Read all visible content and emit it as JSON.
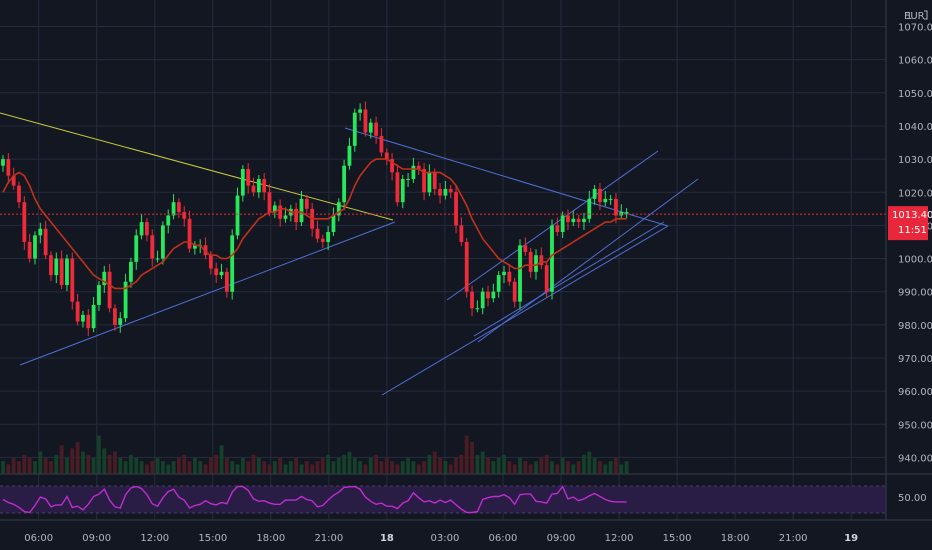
{
  "header": {
    "currency": "EUR",
    "scale_mode": "1"
  },
  "colors": {
    "background": "#131722",
    "grid": "#262b3e",
    "up": "#26e85a",
    "down": "#ef2b3a",
    "ma": "#c23218",
    "trendline_blue": "#4f6fd6",
    "trendline_yellow": "#c9c93a",
    "rsi_line": "#c02ccf",
    "rsi_band": "#2a1d45",
    "last_price": "#e8283a"
  },
  "chart_data": [
    {
      "type": "candlestick",
      "y_ticks": [
        "1070.00",
        "1060.00",
        "1050.00",
        "1040.00",
        "1030.00",
        "1020.00",
        "1010.00",
        "1000.00",
        "990.00",
        "980.00",
        "970.00",
        "960.00",
        "950.00",
        "940.00"
      ],
      "y_tick_values": [
        1070,
        1060,
        1050,
        1040,
        1030,
        1020,
        1010,
        1000,
        990,
        980,
        970,
        960,
        950,
        940
      ],
      "ylim": [
        935,
        1078
      ],
      "x_ticks": [
        "06:00",
        "09:00",
        "12:00",
        "15:00",
        "18:00",
        "21:00",
        "18",
        "03:00",
        "06:00",
        "09:00",
        "12:00",
        "15:00",
        "18:00",
        "21:00",
        "19"
      ],
      "x_tick_hours": [
        6,
        9,
        12,
        15,
        18,
        21,
        24,
        27,
        30,
        33,
        36,
        39,
        42,
        45,
        48
      ],
      "xlim_hours": [
        4.0,
        49.8
      ],
      "last_price": {
        "value": 1013.4,
        "label": "1013.40",
        "countdown": "11:51"
      },
      "candles_close": [
        1030,
        1025,
        1022,
        1017,
        1005,
        1000,
        1007,
        1009,
        1001,
        995,
        1000,
        992,
        1000,
        987,
        981,
        983,
        979,
        986,
        992,
        996,
        985,
        980,
        982,
        993,
        999,
        1007,
        1011,
        1007,
        1000,
        1000,
        1010,
        1013,
        1017,
        1014,
        1012,
        1003,
        1004,
        1004,
        1001,
        997,
        995,
        996,
        990,
        1007,
        1019,
        1027,
        1022,
        1020,
        1024,
        1020,
        1014,
        1016,
        1012,
        1013,
        1015,
        1011,
        1018,
        1015,
        1009,
        1006,
        1005,
        1008,
        1013,
        1017,
        1028,
        1034,
        1044,
        1045,
        1038,
        1041,
        1037,
        1032,
        1030,
        1026,
        1017,
        1024,
        1024,
        1028,
        1027,
        1020,
        1026,
        1021,
        1019,
        1021,
        1020,
        1010,
        1005,
        990,
        985,
        985,
        990,
        988,
        990,
        995,
        996,
        993,
        987,
        1004,
        1002,
        996,
        1001,
        998,
        990,
        1010,
        1008,
        1013,
        1011,
        1012,
        1011,
        1012,
        1018,
        1021,
        1017,
        1018,
        1018,
        1013,
        1014,
        1014
      ],
      "ma_values": [
        1020,
        1023,
        1025,
        1026,
        1025,
        1022,
        1018,
        1015,
        1013,
        1011,
        1009,
        1007,
        1005,
        1003,
        1001,
        999,
        997,
        995,
        994,
        993,
        992,
        991,
        991,
        991,
        992,
        993,
        995,
        996,
        997,
        998,
        999,
        1001,
        1003,
        1004,
        1005,
        1005,
        1004,
        1004,
        1002,
        1001,
        1001,
        1000,
        1000,
        1001,
        1003,
        1006,
        1008,
        1010,
        1012,
        1013,
        1014,
        1014,
        1015,
        1015,
        1014,
        1014,
        1014,
        1013,
        1012,
        1012,
        1012,
        1012,
        1013,
        1014,
        1015,
        1018,
        1022,
        1025,
        1027,
        1029,
        1030,
        1030,
        1030,
        1029,
        1028,
        1027,
        1027,
        1027,
        1027,
        1026,
        1026,
        1026,
        1026,
        1025,
        1024,
        1022,
        1019,
        1016,
        1012,
        1009,
        1006,
        1004,
        1002,
        1000,
        999,
        998,
        997,
        997,
        998,
        998,
        998,
        999,
        999,
        1001,
        1002,
        1003,
        1004,
        1005,
        1006,
        1007,
        1008,
        1009,
        1010,
        1011,
        1011,
        1012,
        1012,
        1012
      ],
      "volume": [
        4,
        3,
        5,
        4,
        6,
        5,
        4,
        7,
        5,
        4,
        6,
        9,
        5,
        8,
        10,
        7,
        6,
        5,
        12,
        8,
        6,
        7,
        5,
        4,
        6,
        5,
        4,
        3,
        4,
        5,
        4,
        3,
        4,
        5,
        6,
        4,
        5,
        4,
        3,
        5,
        6,
        9,
        5,
        4,
        3,
        5,
        4,
        6,
        5,
        4,
        3,
        4,
        5,
        3,
        4,
        5,
        3,
        4,
        3,
        4,
        5,
        6,
        4,
        5,
        6,
        7,
        5,
        4,
        3,
        5,
        6,
        4,
        5,
        4,
        3,
        4,
        5,
        4,
        3,
        4,
        6,
        7,
        5,
        4,
        3,
        5,
        6,
        12,
        10,
        6,
        7,
        5,
        4,
        5,
        6,
        4,
        3,
        5,
        4,
        3,
        4,
        5,
        6,
        4,
        3,
        5,
        4,
        3,
        4,
        6,
        7,
        5,
        4,
        3,
        4,
        5,
        3,
        4
      ],
      "rsi": {
        "tick_label": "50.00",
        "tick_value": 50
      }
    }
  ]
}
